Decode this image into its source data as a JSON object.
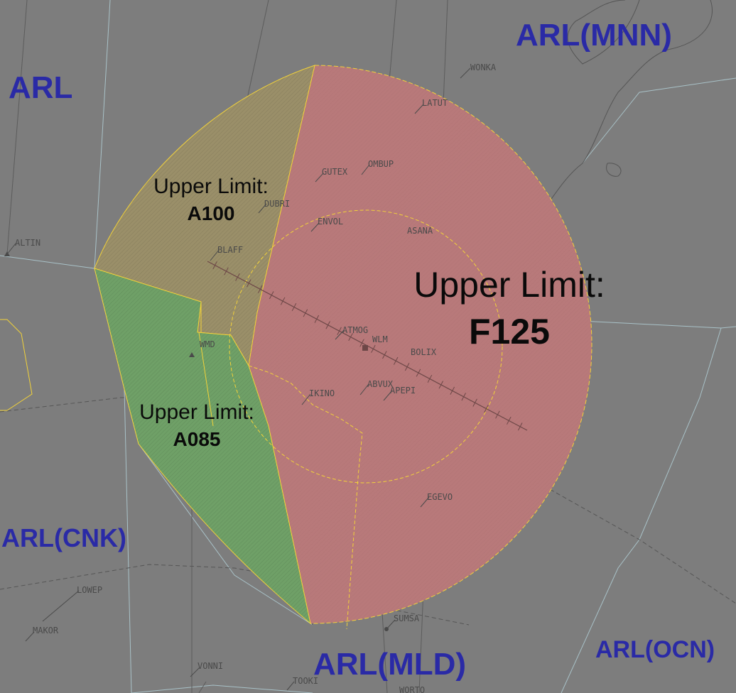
{
  "colors": {
    "background": "#7d7d7d",
    "sector_label": "#2a2aa6",
    "zone_red": "#b8797a",
    "zone_olive": "#9a8f69",
    "zone_green": "#6fa067",
    "boundary_yellow": "#f2d23a",
    "boundary_grey": "#a9c2c8"
  },
  "sectors": {
    "arl": "ARL",
    "arl_mnn": "ARL(MNN)",
    "arl_cnk": "ARL(CNK)",
    "arl_mld": "ARL(MLD)",
    "arl_ocn": "ARL(OCN)"
  },
  "zones": {
    "red": {
      "line1": "Upper Limit:",
      "line2": "F125"
    },
    "olive": {
      "line1": "Upper Limit:",
      "line2": "A100"
    },
    "green": {
      "line1": "Upper Limit:",
      "line2": "A085"
    }
  },
  "fixes": {
    "wonka": "WONKA",
    "latut": "LATUT",
    "gutex": "GUTEX",
    "ombup": "OMBUP",
    "dubri": "DUBRI",
    "envol": "ENVOL",
    "asana": "ASANA",
    "altin": "ALTIN",
    "blaff": "BLAFF",
    "atmog": "ATMOG",
    "wlm": "WLM",
    "wmd": "WMD",
    "bolix": "BOLIX",
    "ikino": "IKINO",
    "abvux": "ABVUX",
    "apepi": "APEPI",
    "egevo": "EGEVO",
    "lowep": "LOWEP",
    "makor": "MAKOR",
    "sumsa": "SUMSA",
    "vonni": "VONNI",
    "tooki": "TOOKI",
    "worto": "WORTO"
  }
}
